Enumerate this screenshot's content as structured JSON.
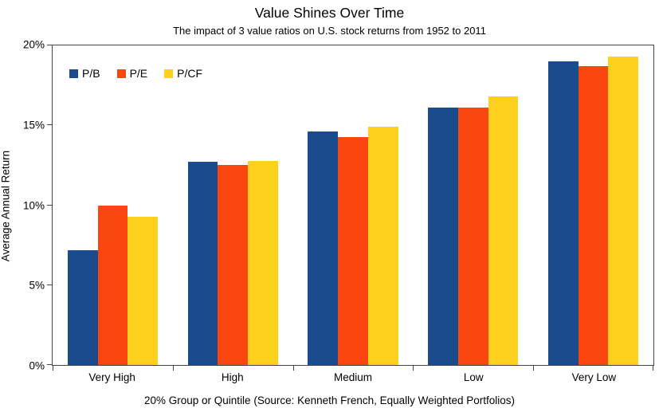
{
  "chart_data": {
    "type": "bar",
    "title": "Value Shines Over Time",
    "subtitle": "The impact of 3 value ratios on U.S. stock returns from 1952 to 2011",
    "categories": [
      "Very High",
      "High",
      "Medium",
      "Low",
      "Very Low"
    ],
    "series": [
      {
        "name": "P/B",
        "color": "#1A4B8C",
        "values": [
          7.2,
          12.7,
          14.6,
          16.1,
          19.0
        ]
      },
      {
        "name": "P/E",
        "color": "#FB450F",
        "values": [
          10.0,
          12.5,
          14.25,
          16.1,
          18.7
        ]
      },
      {
        "name": "P/CF",
        "color": "#FDD01E",
        "values": [
          9.3,
          12.75,
          14.9,
          16.8,
          19.3
        ]
      }
    ],
    "xlabel": "20% Group or Quintile (Source: Kenneth French, Equally Weighted Portfolios)",
    "ylabel": "Average Annual Return",
    "ylim": [
      0,
      20
    ],
    "ytick_values": [
      0,
      5,
      10,
      15,
      20
    ],
    "ytick_labels": [
      "0%",
      "5%",
      "10%",
      "15%",
      "20%"
    ],
    "grid": false,
    "legend_position": "top-left-inside",
    "axis_color": "#444444"
  }
}
